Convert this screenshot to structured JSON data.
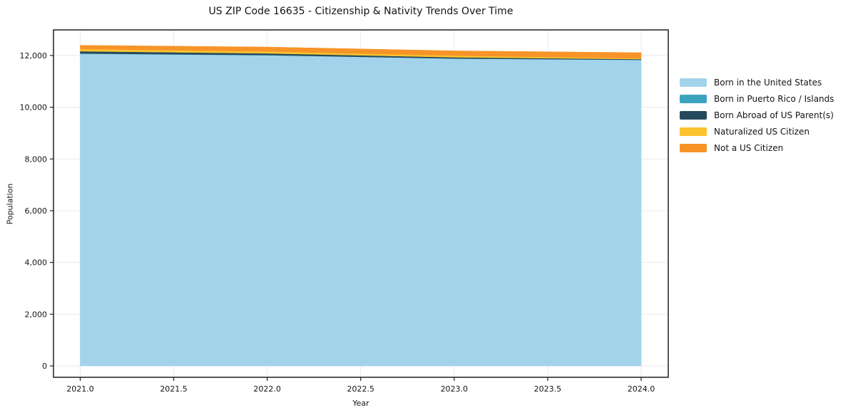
{
  "title": "US ZIP Code 16635 - Citizenship & Nativity Trends Over Time",
  "chart_data": {
    "type": "area",
    "stacked": true,
    "title": "US ZIP Code 16635 - Citizenship & Nativity Trends Over Time",
    "xlabel": "Year",
    "ylabel": "Population",
    "grid": true,
    "legend_position": "right-outside",
    "x": [
      2021,
      2022,
      2023,
      2024
    ],
    "series": [
      {
        "name": "Born in the United States",
        "color": "#A3D3EA",
        "values": [
          12070,
          12010,
          11880,
          11830
        ]
      },
      {
        "name": "Born in Puerto Rico / Islands",
        "color": "#3CA3BE",
        "values": [
          10,
          8,
          6,
          5
        ]
      },
      {
        "name": "Born Abroad of US Parent(s)",
        "color": "#25495C",
        "values": [
          85,
          65,
          45,
          25
        ]
      },
      {
        "name": "Naturalized US Citizen",
        "color": "#FCC32F",
        "values": [
          85,
          75,
          65,
          30
        ]
      },
      {
        "name": "Not a US Citizen",
        "color": "#F79428",
        "values": [
          145,
          170,
          185,
          220
        ]
      }
    ],
    "xlim": [
      2020.857,
      2024.145
    ],
    "ylim": [
      -440,
      12990
    ],
    "xticks": [
      {
        "v": 2021.0,
        "label": "2021.0"
      },
      {
        "v": 2021.5,
        "label": "2021.5"
      },
      {
        "v": 2022.0,
        "label": "2022.0"
      },
      {
        "v": 2022.5,
        "label": "2022.5"
      },
      {
        "v": 2023.0,
        "label": "2023.0"
      },
      {
        "v": 2023.5,
        "label": "2023.5"
      },
      {
        "v": 2024.0,
        "label": "2024.0"
      }
    ],
    "yticks": [
      {
        "v": 0,
        "label": "0"
      },
      {
        "v": 2000,
        "label": "2,000"
      },
      {
        "v": 4000,
        "label": "4,000"
      },
      {
        "v": 6000,
        "label": "6,000"
      },
      {
        "v": 8000,
        "label": "8,000"
      },
      {
        "v": 10000,
        "label": "10,000"
      },
      {
        "v": 12000,
        "label": "12,000"
      }
    ]
  },
  "colors": {
    "background": "#ffffff",
    "grid": "#e9e9e9",
    "spine": "#1f1f1f",
    "text": "#141414"
  }
}
